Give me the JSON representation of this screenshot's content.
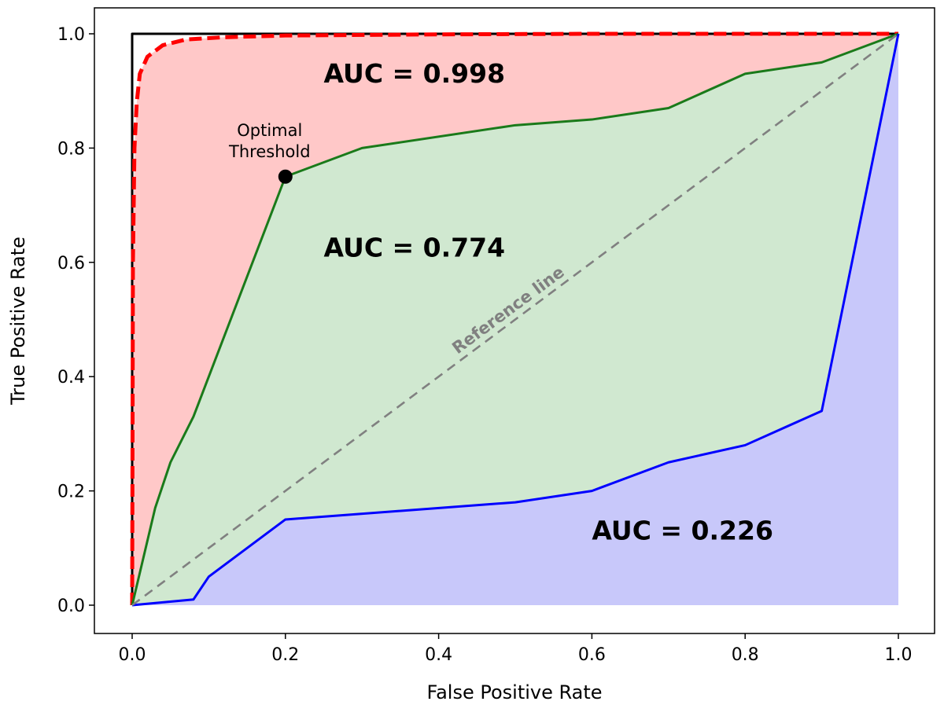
{
  "chart_data": {
    "type": "line",
    "title": "",
    "xlabel": "False Positive Rate",
    "ylabel": "True Positive Rate",
    "xlim": [
      0.0,
      1.0
    ],
    "ylim": [
      0.0,
      1.0
    ],
    "xticks": [
      "0.0",
      "0.2",
      "0.4",
      "0.6",
      "0.8",
      "1.0"
    ],
    "yticks": [
      "0.0",
      "0.2",
      "0.4",
      "0.6",
      "0.8",
      "1.0"
    ],
    "grid": false,
    "legend": "none",
    "series": [
      {
        "style": "solid",
        "color": "#000000",
        "x": [
          0.0,
          0.0,
          1.0
        ],
        "y": [
          0.0,
          1.0,
          1.0
        ]
      },
      {
        "style": "dashed",
        "color": "#ff0000",
        "fill": "#ffc8c8",
        "x": [
          0.0,
          0.001,
          0.003,
          0.006,
          0.01,
          0.02,
          0.04,
          0.07,
          0.12,
          0.2,
          0.4,
          0.6,
          0.8,
          1.0
        ],
        "y": [
          0.0,
          0.6,
          0.8,
          0.88,
          0.93,
          0.96,
          0.98,
          0.99,
          0.994,
          0.997,
          0.999,
          1.0,
          1.0,
          1.0
        ]
      },
      {
        "style": "solid",
        "color": "#1a7a1a",
        "fill": "#d0e8d0",
        "x": [
          0.0,
          0.03,
          0.05,
          0.08,
          0.2,
          0.3,
          0.5,
          0.6,
          0.7,
          0.8,
          0.9,
          1.0
        ],
        "y": [
          0.0,
          0.17,
          0.25,
          0.33,
          0.75,
          0.8,
          0.84,
          0.85,
          0.87,
          0.93,
          0.95,
          1.0
        ]
      },
      {
        "style": "solid",
        "color": "#0000ff",
        "fill": "#c8c8fa",
        "x": [
          0.0,
          0.08,
          0.1,
          0.2,
          0.5,
          0.6,
          0.7,
          0.8,
          0.9,
          1.0
        ],
        "y": [
          0.0,
          0.01,
          0.05,
          0.15,
          0.18,
          0.2,
          0.25,
          0.28,
          0.34,
          1.0
        ]
      },
      {
        "style": "dashed",
        "color": "#808080",
        "x": [
          0.0,
          1.0
        ],
        "y": [
          0.0,
          1.0
        ]
      }
    ],
    "annotations": [
      {
        "text": "AUC = 0.998",
        "x": 0.25,
        "y": 0.915,
        "style": "auc"
      },
      {
        "text": "AUC = 0.774",
        "x": 0.25,
        "y": 0.61,
        "style": "auc"
      },
      {
        "text": "AUC = 0.226",
        "x": 0.6,
        "y": 0.115,
        "style": "auc"
      },
      {
        "text": "Reference line",
        "x": 0.5,
        "y": 0.5,
        "style": "ref",
        "angle_deg": -36.6
      }
    ],
    "highlight_point": {
      "x": 0.2,
      "y": 0.75,
      "label_line1": "Optimal",
      "label_line2": "Threshold"
    }
  }
}
